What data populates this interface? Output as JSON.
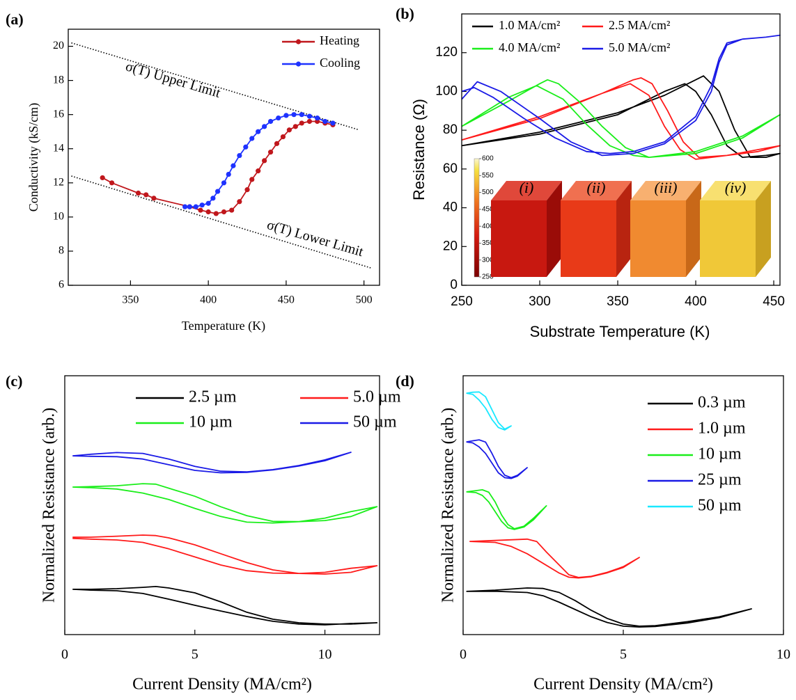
{
  "chart_data": [
    {
      "type": "line",
      "label": "(a)",
      "x_label": "Temperature (K)",
      "y_label": "Conductivity (kS/cm)",
      "xlim": [
        310,
        510
      ],
      "ylim": [
        6,
        21
      ],
      "xticks": [
        350,
        400,
        450,
        500
      ],
      "yticks": [
        6,
        8,
        10,
        12,
        14,
        16,
        18,
        20
      ],
      "legend": "upper right",
      "markers": true,
      "series": [
        {
          "name": "Heating",
          "color": "#c0171c",
          "x": [
            332,
            338,
            355,
            360,
            365,
            388,
            395,
            400,
            405,
            410,
            415,
            420,
            425,
            428,
            432,
            436,
            440,
            444,
            448,
            452,
            456,
            460,
            465,
            470,
            475,
            480
          ],
          "values": [
            12.3,
            12.0,
            11.4,
            11.3,
            11.1,
            10.6,
            10.4,
            10.3,
            10.2,
            10.3,
            10.4,
            10.9,
            11.6,
            12.2,
            12.7,
            13.3,
            13.8,
            14.3,
            14.7,
            15.1,
            15.3,
            15.5,
            15.6,
            15.6,
            15.5,
            15.4
          ]
        },
        {
          "name": "Cooling",
          "color": "#1e32ff",
          "x": [
            385,
            388,
            392,
            396,
            400,
            403,
            406,
            410,
            413,
            416,
            420,
            424,
            428,
            432,
            436,
            440,
            445,
            450,
            455,
            460,
            465,
            470,
            475,
            480
          ],
          "values": [
            10.6,
            10.6,
            10.6,
            10.7,
            10.8,
            11.1,
            11.5,
            12.0,
            12.5,
            13.0,
            13.6,
            14.1,
            14.6,
            15.0,
            15.3,
            15.6,
            15.8,
            15.95,
            16.0,
            16.0,
            15.9,
            15.8,
            15.6,
            15.5
          ]
        }
      ],
      "reference_lines": [
        {
          "x": [
            312,
            497
          ],
          "values": [
            20.2,
            15.1
          ]
        },
        {
          "x": [
            312,
            505
          ],
          "values": [
            12.4,
            7.0
          ]
        }
      ],
      "annotations": [
        "σ(T) Upper Limit",
        "σ(T) Lower Limit"
      ]
    },
    {
      "type": "line",
      "label": "(b)",
      "x_label": "Substrate Temperature (K)",
      "y_label": "Resistance (Ω)",
      "xlim": [
        250,
        454
      ],
      "ylim": [
        0,
        140
      ],
      "xticks": [
        250,
        300,
        350,
        400,
        450
      ],
      "yticks": [
        0,
        20,
        40,
        60,
        80,
        100,
        120
      ],
      "legend": "upper left",
      "series": [
        {
          "name": "1.0 MA/cm²",
          "color": "#000000",
          "x": [
            250,
            300,
            350,
            380,
            400,
            405,
            415,
            425,
            435,
            445,
            454,
            445,
            430,
            420,
            410,
            400,
            393,
            380,
            350,
            300,
            250
          ],
          "values": [
            72,
            79,
            89,
            98,
            106,
            108,
            100,
            80,
            66,
            66,
            68,
            67,
            66,
            72,
            88,
            100,
            104,
            100,
            88,
            78,
            72
          ]
        },
        {
          "name": "2.5 MA/cm²",
          "color": "#ff1a1a",
          "x": [
            250,
            300,
            340,
            360,
            365,
            372,
            382,
            392,
            402,
            420,
            440,
            454,
            440,
            420,
            400,
            390,
            380,
            370,
            358,
            340,
            300,
            250
          ],
          "values": [
            75,
            87,
            99,
            106,
            107,
            104,
            90,
            74,
            66,
            67,
            69,
            72,
            70,
            67,
            65,
            70,
            82,
            98,
            104,
            99,
            86,
            75
          ]
        },
        {
          "name": "4.0 MA/cm²",
          "color": "#1aee1a",
          "x": [
            250,
            280,
            300,
            305,
            312,
            325,
            340,
            355,
            370,
            400,
            430,
            454,
            430,
            400,
            370,
            360,
            345,
            330,
            315,
            298,
            280,
            250
          ],
          "values": [
            82,
            95,
            104,
            106,
            104,
            95,
            82,
            71,
            66,
            69,
            77,
            88,
            76,
            68,
            66,
            67,
            72,
            83,
            96,
            103,
            97,
            82
          ]
        },
        {
          "name": "5.0 MA/cm²",
          "color": "#1a1ae6",
          "x": [
            250,
            260,
            275,
            300,
            320,
            340,
            360,
            380,
            400,
            410,
            415,
            420,
            430,
            445,
            454,
            445,
            430,
            420,
            415,
            410,
            400,
            380,
            360,
            345,
            330,
            310,
            290,
            270,
            258,
            250
          ],
          "values": [
            96,
            105,
            100,
            86,
            74,
            67,
            68,
            73,
            85,
            100,
            115,
            124,
            127,
            128,
            129,
            128,
            127,
            125,
            117,
            103,
            87,
            74,
            69,
            68,
            69,
            76,
            86,
            97,
            102,
            100
          ]
        }
      ],
      "inset": {
        "colorbar_lim": [
          250,
          600
        ],
        "colorbar_ticks": [
          250,
          300,
          350,
          400,
          450,
          500,
          550,
          600
        ],
        "cube_labels": [
          "(i)",
          "(ii)",
          "(iii)",
          "(iv)"
        ]
      }
    },
    {
      "type": "line",
      "label": "(c)",
      "x_label": "Current Density (MA/cm²)",
      "y_label": "Normalized Resistance (arb.)",
      "xlim": [
        0,
        12.1
      ],
      "ylim": [
        0,
        16
      ],
      "xticks": [
        0,
        5,
        10
      ],
      "legend": "upper right",
      "series": [
        {
          "name": "2.5 µm",
          "color": "#000000",
          "x": [
            0.3,
            1,
            2,
            3,
            3.5,
            4,
            5,
            6,
            7,
            8,
            9,
            10,
            11,
            12,
            11,
            10,
            9,
            8,
            7,
            6,
            5,
            4,
            3,
            2,
            1,
            0.3
          ],
          "values": [
            2.8,
            2.8,
            2.84,
            2.92,
            2.97,
            2.88,
            2.58,
            2.02,
            1.38,
            0.95,
            0.73,
            0.65,
            0.65,
            0.73,
            0.69,
            0.6,
            0.65,
            0.82,
            1.12,
            1.46,
            1.81,
            2.19,
            2.54,
            2.71,
            2.75,
            2.8
          ]
        },
        {
          "name": "5.0 µm",
          "color": "#ff1a1a",
          "x": [
            0.3,
            1,
            2,
            3,
            3.5,
            4,
            5,
            6,
            7,
            8,
            9,
            10,
            11,
            12,
            11,
            10,
            9,
            8,
            7,
            6,
            5,
            4,
            3,
            2,
            1,
            0.3
          ],
          "values": [
            6.02,
            6.02,
            6.08,
            6.15,
            6.12,
            5.98,
            5.55,
            5.0,
            4.45,
            4.0,
            3.78,
            3.74,
            3.85,
            4.26,
            4.1,
            3.85,
            3.78,
            3.8,
            3.95,
            4.3,
            4.8,
            5.3,
            5.7,
            5.85,
            5.9,
            5.95
          ]
        },
        {
          "name": "10 µm",
          "color": "#1aee1a",
          "x": [
            0.3,
            1,
            2,
            3,
            3.5,
            4,
            5,
            6,
            7,
            8,
            9,
            10,
            11,
            12,
            11,
            10,
            9,
            8,
            7,
            6,
            5,
            4,
            3,
            2,
            1,
            0.3
          ],
          "values": [
            9.12,
            9.15,
            9.2,
            9.33,
            9.3,
            9.05,
            8.55,
            7.9,
            7.35,
            7.0,
            6.98,
            7.05,
            7.3,
            7.91,
            7.6,
            7.2,
            6.98,
            6.9,
            6.95,
            7.3,
            7.8,
            8.35,
            8.75,
            9.0,
            9.08,
            9.12
          ]
        },
        {
          "name": "50 µm",
          "color": "#1a1ae6",
          "x": [
            0.3,
            1,
            2,
            3,
            4,
            5,
            6,
            7,
            8,
            9,
            10,
            11,
            10,
            9,
            8,
            7,
            6,
            5,
            4,
            3,
            2,
            1,
            0.3
          ],
          "values": [
            11.05,
            11.15,
            11.25,
            11.2,
            10.85,
            10.4,
            10.1,
            10.06,
            10.2,
            10.45,
            10.8,
            11.27,
            10.75,
            10.42,
            10.18,
            10.03,
            10.0,
            10.15,
            10.5,
            10.85,
            11.0,
            11.02,
            11.05
          ]
        }
      ]
    },
    {
      "type": "line",
      "label": "(d)",
      "x_label": "Current Density (MA/cm²)",
      "y_label": "Normalized Resistance (arb.)",
      "xlim": [
        0,
        10
      ],
      "ylim": [
        0,
        16
      ],
      "xticks": [
        0,
        5,
        10
      ],
      "legend": "upper right",
      "series": [
        {
          "name": "0.3 µm",
          "color": "#000000",
          "x": [
            0.1,
            1,
            2,
            2.5,
            3,
            3.5,
            4,
            4.5,
            5,
            5.5,
            6,
            7,
            8,
            9,
            8,
            7,
            6,
            5.5,
            5,
            4.5,
            4,
            3.5,
            3,
            2.5,
            2,
            1,
            0.1
          ],
          "values": [
            2.67,
            2.75,
            2.88,
            2.85,
            2.6,
            2.1,
            1.5,
            1.0,
            0.65,
            0.52,
            0.55,
            0.8,
            1.1,
            1.59,
            1.05,
            0.72,
            0.5,
            0.47,
            0.52,
            0.75,
            1.1,
            1.55,
            2.0,
            2.4,
            2.6,
            2.68,
            2.67
          ]
        },
        {
          "name": "1.0 µm",
          "color": "#ff1a1a",
          "x": [
            0.2,
            1,
            2,
            2.3,
            2.6,
            3,
            3.3,
            3.6,
            4,
            4.5,
            5,
            5.5,
            5,
            4.5,
            4,
            3.6,
            3.3,
            3,
            2.5,
            2,
            1.5,
            1,
            0.2
          ],
          "values": [
            5.76,
            5.82,
            5.9,
            5.75,
            5.1,
            4.3,
            3.7,
            3.53,
            3.6,
            3.85,
            4.2,
            4.77,
            4.15,
            3.82,
            3.58,
            3.5,
            3.55,
            3.8,
            4.4,
            5.0,
            5.45,
            5.7,
            5.76
          ]
        },
        {
          "name": "10 µm",
          "color": "#1aee1a",
          "x": [
            0.1,
            0.4,
            0.6,
            0.8,
            1,
            1.2,
            1.4,
            1.6,
            1.9,
            2.2,
            2.6,
            2.2,
            1.9,
            1.6,
            1.4,
            1.2,
            1,
            0.8,
            0.6,
            0.4,
            0.1
          ],
          "values": [
            8.82,
            8.9,
            8.95,
            8.8,
            8.2,
            7.4,
            6.8,
            6.54,
            6.7,
            7.2,
            7.96,
            7.1,
            6.65,
            6.5,
            6.6,
            7.0,
            7.6,
            8.2,
            8.6,
            8.78,
            8.82
          ]
        },
        {
          "name": "25 µm",
          "color": "#1a1ae6",
          "x": [
            0.1,
            0.3,
            0.5,
            0.7,
            0.9,
            1.1,
            1.3,
            1.5,
            1.7,
            2,
            1.7,
            1.5,
            1.3,
            1.1,
            0.9,
            0.7,
            0.5,
            0.3,
            0.1
          ],
          "values": [
            11.91,
            11.98,
            12.04,
            11.9,
            11.2,
            10.4,
            9.85,
            9.7,
            9.85,
            10.32,
            9.8,
            9.65,
            9.7,
            10.0,
            10.6,
            11.2,
            11.6,
            11.85,
            11.91
          ]
        },
        {
          "name": "50 µm",
          "color": "#1ae8ff",
          "x": [
            0.1,
            0.3,
            0.5,
            0.7,
            0.9,
            1.1,
            1.3,
            1.5,
            1.3,
            1.1,
            0.9,
            0.7,
            0.5,
            0.3,
            0.1
          ],
          "values": [
            14.92,
            14.98,
            15.0,
            14.7,
            13.9,
            13.1,
            12.7,
            12.9,
            12.65,
            12.8,
            13.3,
            14.0,
            14.5,
            14.85,
            14.92
          ]
        }
      ]
    }
  ]
}
